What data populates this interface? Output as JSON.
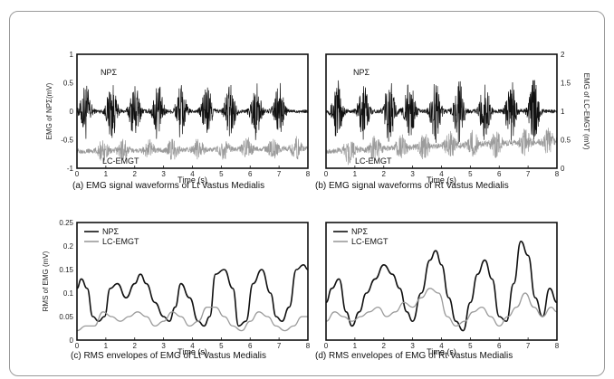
{
  "chart_data": [
    {
      "id": "a",
      "type": "line",
      "caption": "(a) EMG signal waveforms of Lt Vastus Medialis",
      "xlabel": "Time (s)",
      "ylabel": "EMG of NPΣ(mV)",
      "xlim": [
        0,
        8
      ],
      "ylim": [
        -1,
        1
      ],
      "xticks": [
        "0",
        "1",
        "2",
        "3",
        "4",
        "5",
        "6",
        "7",
        "8"
      ],
      "yticks": [
        "-1",
        "-0.5",
        "0",
        "0.5",
        "1"
      ],
      "annotations": [
        "NPΣ",
        "LC-EMGT"
      ],
      "colors": {
        "npe": "#111111",
        "lc": "#9b9b9b"
      },
      "series": [
        {
          "label": "NPΣ",
          "baseline": 0.0,
          "noise": 0.03,
          "burst_centers": [
            0.3,
            1.2,
            2.0,
            2.8,
            3.6,
            4.5,
            5.3,
            6.2,
            7.0
          ],
          "burst_amp": 0.5
        },
        {
          "label": "LC-EMGT",
          "baseline": -0.7,
          "baseline_end": -0.65,
          "noise": 0.04,
          "burst_centers": [
            0.9,
            1.6,
            2.5,
            3.3,
            4.2,
            5.1,
            5.9,
            6.8,
            7.6
          ],
          "burst_amp": 0.18
        }
      ]
    },
    {
      "id": "b",
      "type": "line",
      "caption": "(b) EMG signal waveforms of Rt Vastus Medialis",
      "xlabel": "Time (s)",
      "ylabel2": "EMG of LC-EMGT (mV)",
      "xlim": [
        0,
        8
      ],
      "ylim": [
        0,
        2
      ],
      "xticks": [
        "0",
        "1",
        "2",
        "3",
        "4",
        "5",
        "6",
        "7",
        "8"
      ],
      "yticks": [
        "0",
        "0.5",
        "1",
        "1.5",
        "2"
      ],
      "annotations": [
        "NPΣ",
        "LC-EMGT"
      ],
      "colors": {
        "npe": "#111111",
        "lc": "#9b9b9b"
      },
      "series": [
        {
          "label": "NPΣ",
          "baseline": 1.0,
          "noise": 0.03,
          "burst_centers": [
            0.4,
            1.3,
            2.2,
            2.9,
            3.8,
            4.6,
            5.5,
            6.4,
            7.2
          ],
          "burst_amp": 0.55
        },
        {
          "label": "LC-EMGT",
          "baseline": 0.3,
          "baseline_end": 0.48,
          "noise": 0.05,
          "burst_centers": [
            0.8,
            1.7,
            2.6,
            3.4,
            4.3,
            5.1,
            5.9,
            6.9,
            7.7
          ],
          "burst_amp": 0.22
        }
      ]
    },
    {
      "id": "c",
      "type": "line",
      "caption": "(c) RMS envelopes of EMG of Lt Vastus Medialis",
      "xlabel": "Time (s)",
      "ylabel": "RMS of EMG (mV)",
      "xlim": [
        0,
        8
      ],
      "ylim": [
        0,
        0.25
      ],
      "xticks": [
        "0",
        "1",
        "2",
        "3",
        "4",
        "5",
        "6",
        "7",
        "8"
      ],
      "yticks": [
        "0",
        "0.05",
        "0.1",
        "0.15",
        "0.2",
        "0.25"
      ],
      "legend_position": "top-left",
      "colors": {
        "npe": "#111111",
        "lc": "#9b9b9b"
      },
      "series": [
        {
          "name": "NPΣ",
          "x": [
            0,
            0.15,
            0.35,
            0.55,
            0.75,
            0.95,
            1.15,
            1.4,
            1.7,
            2.0,
            2.2,
            2.4,
            2.7,
            3.0,
            3.2,
            3.4,
            3.6,
            3.9,
            4.2,
            4.4,
            4.6,
            4.8,
            5.1,
            5.4,
            5.6,
            5.85,
            6.1,
            6.4,
            6.7,
            6.9,
            7.1,
            7.35,
            7.6,
            7.85,
            8.0
          ],
          "y": [
            0.11,
            0.13,
            0.11,
            0.05,
            0.04,
            0.05,
            0.11,
            0.12,
            0.09,
            0.12,
            0.14,
            0.12,
            0.08,
            0.05,
            0.04,
            0.07,
            0.12,
            0.09,
            0.04,
            0.03,
            0.05,
            0.14,
            0.15,
            0.11,
            0.03,
            0.04,
            0.12,
            0.15,
            0.1,
            0.05,
            0.04,
            0.07,
            0.15,
            0.16,
            0.15
          ]
        },
        {
          "name": "LC-EMGT",
          "x": [
            0,
            0.3,
            0.6,
            0.9,
            1.2,
            1.5,
            1.8,
            2.1,
            2.4,
            2.7,
            3.0,
            3.3,
            3.6,
            3.9,
            4.2,
            4.5,
            4.8,
            5.1,
            5.4,
            5.7,
            6.0,
            6.3,
            6.6,
            6.9,
            7.2,
            7.5,
            7.8,
            8.0
          ],
          "y": [
            0.02,
            0.03,
            0.03,
            0.06,
            0.05,
            0.04,
            0.05,
            0.06,
            0.05,
            0.03,
            0.04,
            0.06,
            0.05,
            0.03,
            0.04,
            0.07,
            0.07,
            0.05,
            0.03,
            0.02,
            0.04,
            0.06,
            0.05,
            0.03,
            0.02,
            0.03,
            0.05,
            0.05
          ]
        }
      ]
    },
    {
      "id": "d",
      "type": "line",
      "caption": "(d) RMS envelopes of EMG of Rt Vastus Medialis",
      "xlabel": "Time (s)",
      "xlim": [
        0,
        8
      ],
      "ylim": [
        0,
        0.25
      ],
      "xticks": [
        "0",
        "1",
        "2",
        "3",
        "4",
        "5",
        "6",
        "7",
        "8"
      ],
      "yticks": [
        "0",
        "0.05",
        "0.1",
        "0.15",
        "0.2",
        "0.25"
      ],
      "legend_position": "top-left",
      "colors": {
        "npe": "#111111",
        "lc": "#9b9b9b"
      },
      "series": [
        {
          "name": "NPΣ",
          "x": [
            0,
            0.2,
            0.45,
            0.7,
            0.9,
            1.15,
            1.4,
            1.7,
            2.0,
            2.3,
            2.55,
            2.8,
            3.0,
            3.3,
            3.6,
            3.8,
            4.0,
            4.25,
            4.5,
            4.75,
            5.0,
            5.25,
            5.5,
            5.75,
            6.0,
            6.25,
            6.5,
            6.75,
            7.0,
            7.25,
            7.5,
            7.75,
            8.0
          ],
          "y": [
            0.08,
            0.11,
            0.13,
            0.06,
            0.03,
            0.06,
            0.1,
            0.13,
            0.16,
            0.14,
            0.11,
            0.06,
            0.04,
            0.1,
            0.17,
            0.19,
            0.16,
            0.09,
            0.04,
            0.02,
            0.08,
            0.14,
            0.17,
            0.13,
            0.05,
            0.04,
            0.12,
            0.21,
            0.18,
            0.09,
            0.05,
            0.11,
            0.08
          ]
        },
        {
          "name": "LC-EMGT",
          "x": [
            0,
            0.3,
            0.6,
            0.9,
            1.2,
            1.5,
            1.8,
            2.1,
            2.4,
            2.7,
            3.0,
            3.3,
            3.6,
            3.9,
            4.2,
            4.5,
            4.8,
            5.1,
            5.4,
            5.7,
            6.0,
            6.3,
            6.6,
            6.9,
            7.2,
            7.5,
            7.8,
            8.0
          ],
          "y": [
            0.04,
            0.06,
            0.05,
            0.04,
            0.05,
            0.06,
            0.07,
            0.05,
            0.06,
            0.08,
            0.07,
            0.09,
            0.11,
            0.1,
            0.05,
            0.03,
            0.04,
            0.06,
            0.07,
            0.05,
            0.03,
            0.05,
            0.07,
            0.1,
            0.07,
            0.05,
            0.07,
            0.06
          ]
        }
      ]
    }
  ]
}
